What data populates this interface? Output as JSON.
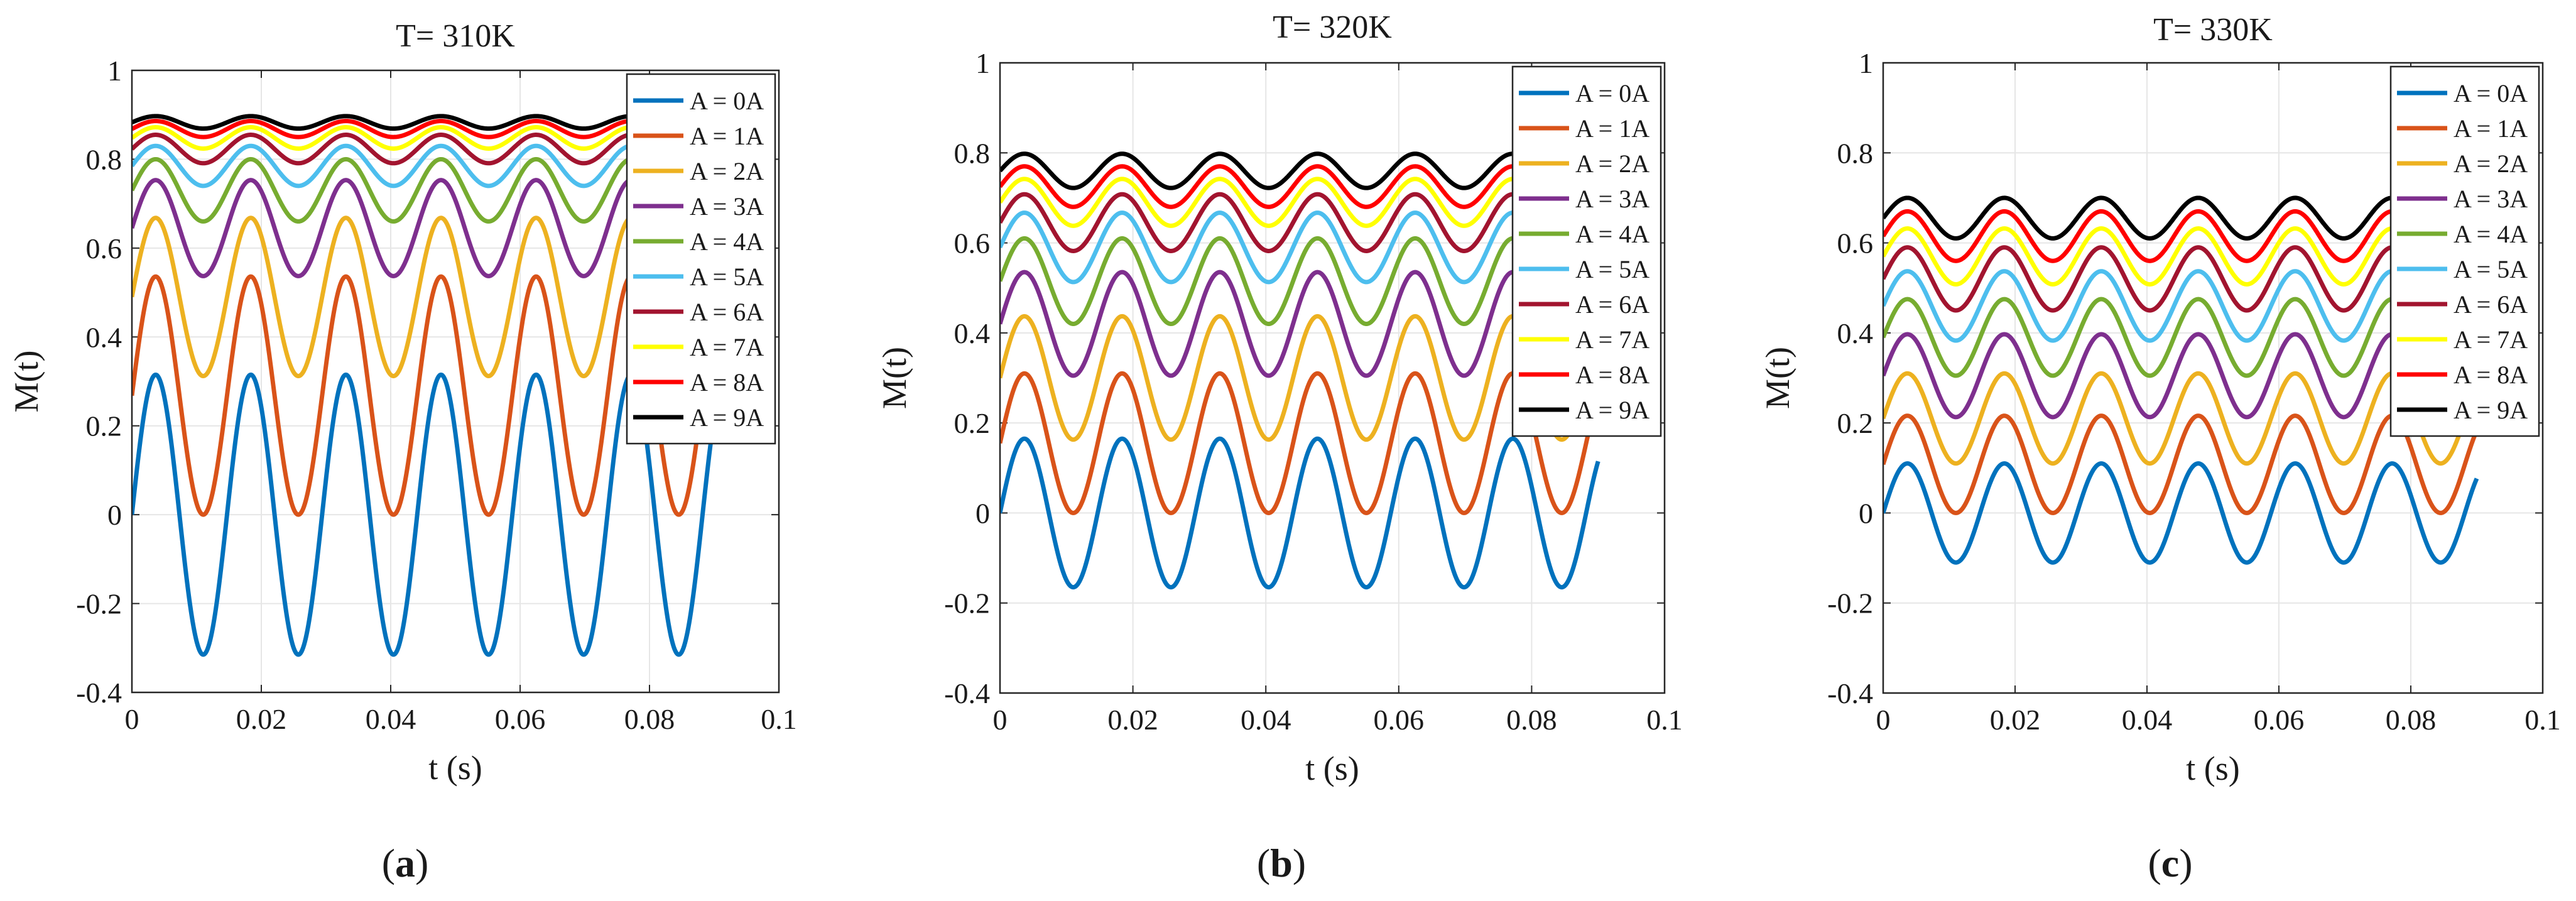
{
  "figure": {
    "captions": [
      {
        "open": "(",
        "letter": "a",
        "close": ")"
      },
      {
        "open": "(",
        "letter": "b",
        "close": ")"
      },
      {
        "open": "(",
        "letter": "c",
        "close": ")"
      }
    ]
  },
  "chart_data": [
    {
      "type": "line",
      "title": "T= 310K",
      "xlabel": "t (s)",
      "ylabel": "M(t)",
      "xlim": [
        0,
        0.1
      ],
      "ylim": [
        -0.4,
        1
      ],
      "xticks": [
        "0",
        "0.02",
        "0.04",
        "0.06",
        "0.08",
        "0.1"
      ],
      "yticks": [
        "-0.4",
        "-0.2",
        "0",
        "0.2",
        "0.4",
        "0.6",
        "0.8",
        "1"
      ],
      "grid": true,
      "legend_position": "top-right",
      "period_s": 0.0147,
      "t_range": [
        0,
        0.09
      ],
      "series": [
        {
          "name": "A = 0A",
          "color": "#0072BD",
          "center": 0.0,
          "amplitude": 0.315
        },
        {
          "name": "A = 1A",
          "color": "#D95319",
          "center": 0.268,
          "amplitude": 0.268
        },
        {
          "name": "A = 2A",
          "color": "#EDB120",
          "center": 0.49,
          "amplitude": 0.178
        },
        {
          "name": "A = 3A",
          "color": "#7E2F8E",
          "center": 0.645,
          "amplitude": 0.108
        },
        {
          "name": "A = 4A",
          "color": "#77AC30",
          "center": 0.73,
          "amplitude": 0.07
        },
        {
          "name": "A = 5A",
          "color": "#4DBEEE",
          "center": 0.785,
          "amplitude": 0.045
        },
        {
          "name": "A = 6A",
          "color": "#A2142F",
          "center": 0.823,
          "amplitude": 0.032
        },
        {
          "name": "A = 7A",
          "color": "#FFFF00",
          "center": 0.848,
          "amplitude": 0.024
        },
        {
          "name": "A = 8A",
          "color": "#FF0000",
          "center": 0.868,
          "amplitude": 0.018
        },
        {
          "name": "A = 9A",
          "color": "#000000",
          "center": 0.883,
          "amplitude": 0.014
        }
      ]
    },
    {
      "type": "line",
      "title": "T= 320K",
      "xlabel": "t (s)",
      "ylabel": "M(t)",
      "xlim": [
        0,
        0.1
      ],
      "ylim": [
        -0.4,
        1
      ],
      "xticks": [
        "0",
        "0.02",
        "0.04",
        "0.06",
        "0.08",
        "0.1"
      ],
      "yticks": [
        "-0.4",
        "-0.2",
        "0",
        "0.2",
        "0.4",
        "0.6",
        "0.8",
        "1"
      ],
      "grid": true,
      "legend_position": "top-right",
      "period_s": 0.0147,
      "t_range": [
        0,
        0.09
      ],
      "series": [
        {
          "name": "A = 0A",
          "color": "#0072BD",
          "center": 0.0,
          "amplitude": 0.165
        },
        {
          "name": "A = 1A",
          "color": "#D95319",
          "center": 0.155,
          "amplitude": 0.155
        },
        {
          "name": "A = 2A",
          "color": "#EDB120",
          "center": 0.3,
          "amplitude": 0.137
        },
        {
          "name": "A = 3A",
          "color": "#7E2F8E",
          "center": 0.42,
          "amplitude": 0.115
        },
        {
          "name": "A = 4A",
          "color": "#77AC30",
          "center": 0.515,
          "amplitude": 0.095
        },
        {
          "name": "A = 5A",
          "color": "#4DBEEE",
          "center": 0.59,
          "amplitude": 0.077
        },
        {
          "name": "A = 6A",
          "color": "#A2142F",
          "center": 0.645,
          "amplitude": 0.063
        },
        {
          "name": "A = 7A",
          "color": "#FFFF00",
          "center": 0.69,
          "amplitude": 0.052
        },
        {
          "name": "A = 8A",
          "color": "#FF0000",
          "center": 0.725,
          "amplitude": 0.045
        },
        {
          "name": "A = 9A",
          "color": "#000000",
          "center": 0.76,
          "amplitude": 0.038
        }
      ]
    },
    {
      "type": "line",
      "title": "T= 330K",
      "xlabel": "t (s)",
      "ylabel": "M(t)",
      "xlim": [
        0,
        0.1
      ],
      "ylim": [
        -0.4,
        1
      ],
      "xticks": [
        "0",
        "0.02",
        "0.04",
        "0.06",
        "0.08",
        "0.1"
      ],
      "yticks": [
        "-0.4",
        "-0.2",
        "0",
        "0.2",
        "0.4",
        "0.6",
        "0.8",
        "1"
      ],
      "grid": true,
      "legend_position": "top-right",
      "period_s": 0.0147,
      "t_range": [
        0,
        0.09
      ],
      "series": [
        {
          "name": "A = 0A",
          "color": "#0072BD",
          "center": 0.0,
          "amplitude": 0.11
        },
        {
          "name": "A = 1A",
          "color": "#D95319",
          "center": 0.108,
          "amplitude": 0.108
        },
        {
          "name": "A = 2A",
          "color": "#EDB120",
          "center": 0.21,
          "amplitude": 0.1
        },
        {
          "name": "A = 3A",
          "color": "#7E2F8E",
          "center": 0.305,
          "amplitude": 0.092
        },
        {
          "name": "A = 4A",
          "color": "#77AC30",
          "center": 0.39,
          "amplitude": 0.085
        },
        {
          "name": "A = 5A",
          "color": "#4DBEEE",
          "center": 0.46,
          "amplitude": 0.077
        },
        {
          "name": "A = 6A",
          "color": "#A2142F",
          "center": 0.52,
          "amplitude": 0.07
        },
        {
          "name": "A = 7A",
          "color": "#FFFF00",
          "center": 0.57,
          "amplitude": 0.062
        },
        {
          "name": "A = 8A",
          "color": "#FF0000",
          "center": 0.615,
          "amplitude": 0.055
        },
        {
          "name": "A = 9A",
          "color": "#000000",
          "center": 0.655,
          "amplitude": 0.045
        }
      ]
    }
  ]
}
